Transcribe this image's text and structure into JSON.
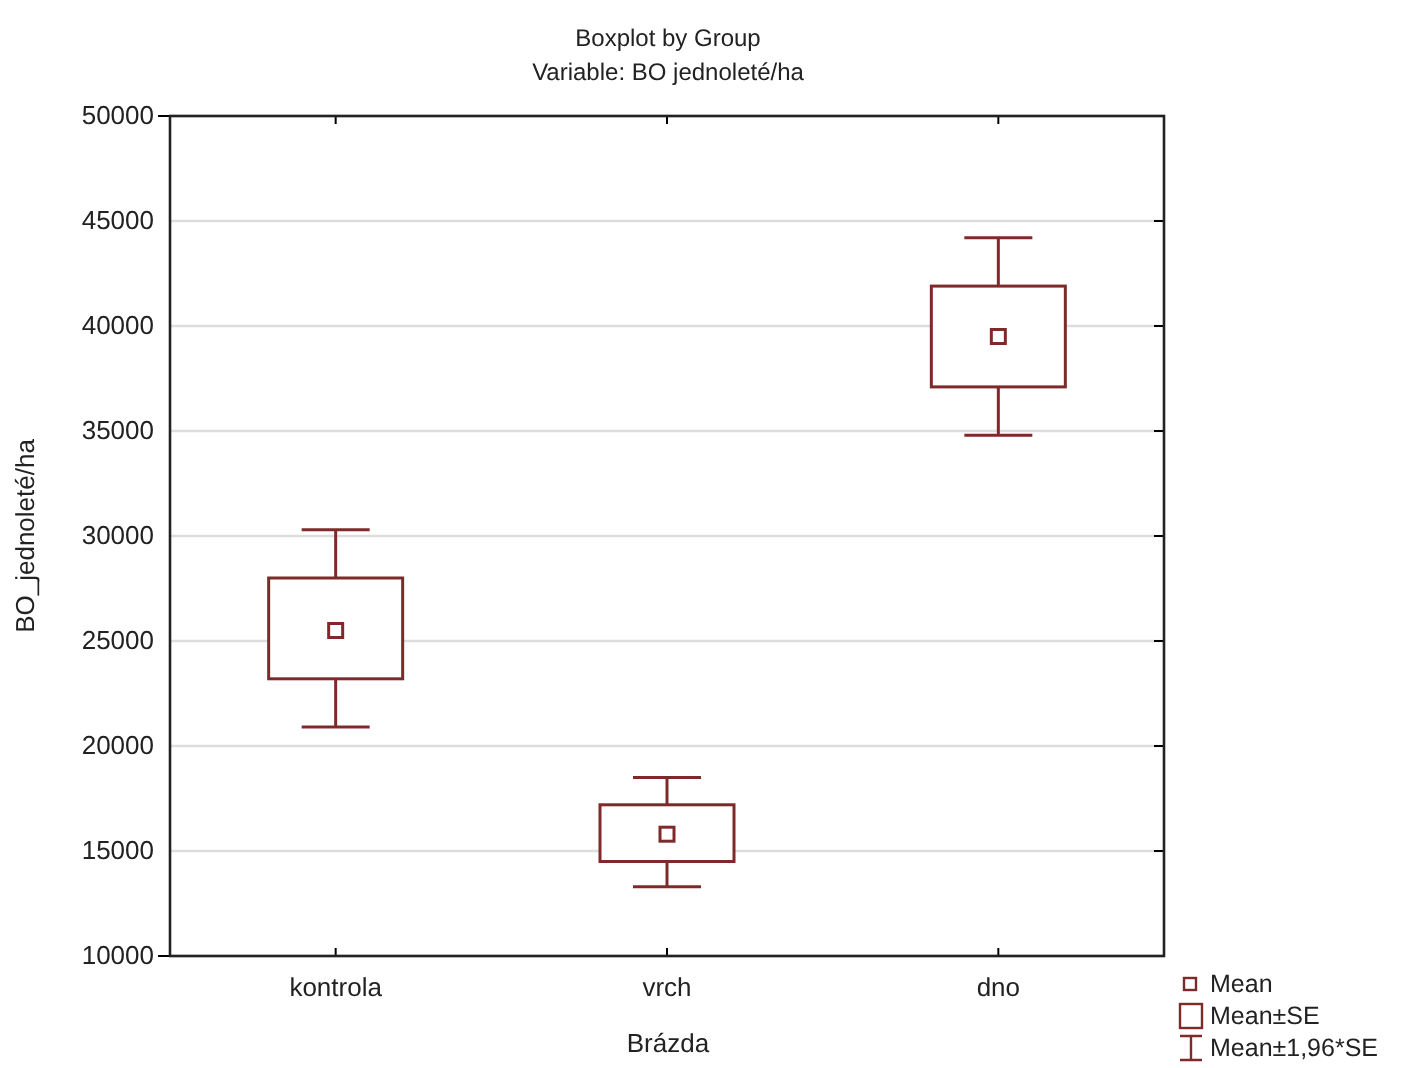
{
  "chart_data": {
    "type": "box",
    "title": "Boxplot by Group",
    "subtitle": "Variable: BO  jednoleté/ha",
    "xlabel": "Brázda",
    "ylabel": "BO_jednoleté/ha",
    "categories": [
      "kontrola",
      "vrch",
      "dno"
    ],
    "boxes": [
      {
        "low": 20900,
        "q1": 23200,
        "median": 25500,
        "q3": 28000,
        "high": 30300
      },
      {
        "low": 13300,
        "q1": 14500,
        "median": 15800,
        "q3": 17200,
        "high": 18500
      },
      {
        "low": 34800,
        "q1": 37100,
        "median": 39500,
        "q3": 41900,
        "high": 44200
      }
    ],
    "color": "#7f2a2a",
    "ylim": [
      10000,
      50000
    ],
    "yticks": [
      10000,
      15000,
      20000,
      25000,
      30000,
      35000,
      40000,
      45000,
      50000
    ],
    "grid": "y",
    "annotations": [
      "Mean",
      "Mean±SE",
      "Mean±1,96*SE"
    ]
  }
}
